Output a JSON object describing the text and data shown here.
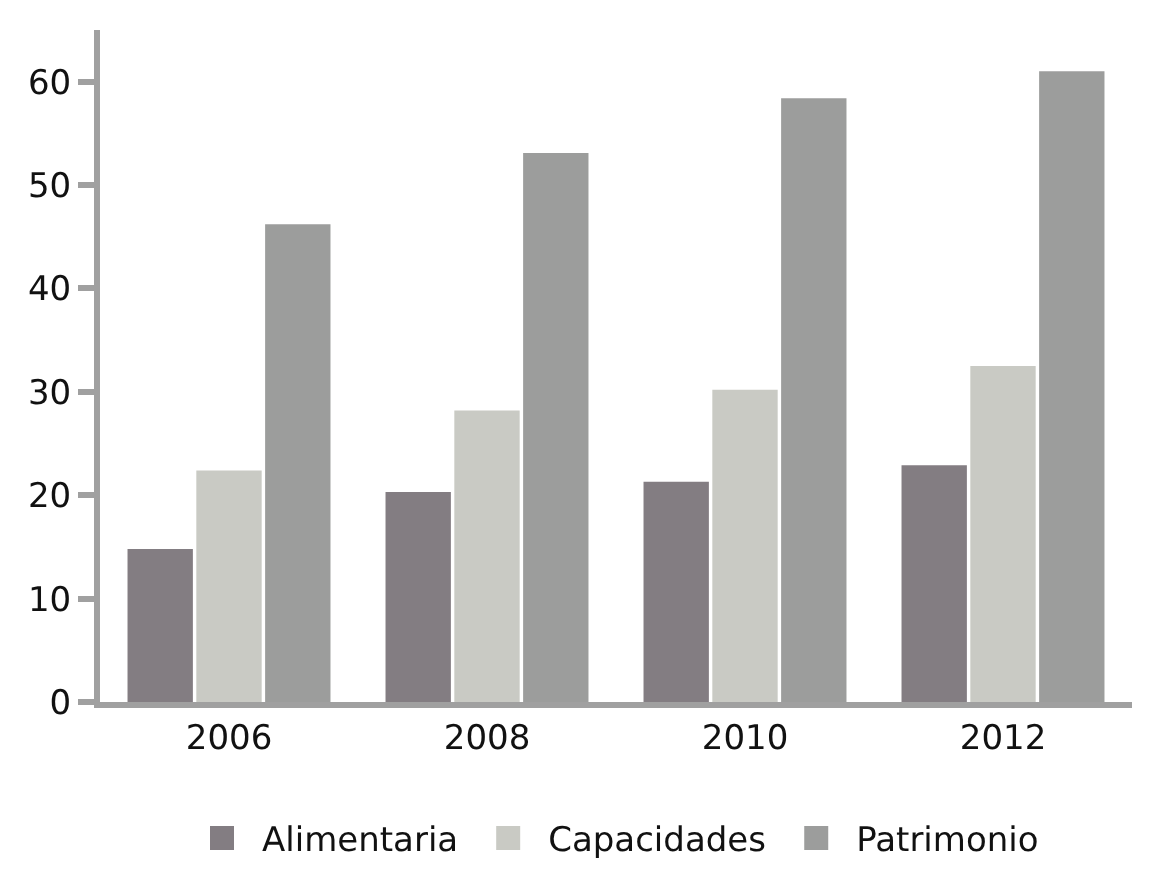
{
  "chart_data": {
    "type": "bar",
    "categories": [
      "2006",
      "2008",
      "2010",
      "2012"
    ],
    "series": [
      {
        "name": "Alimentaria",
        "color": "#837d82",
        "values": [
          14.8,
          20.3,
          21.3,
          22.9
        ]
      },
      {
        "name": "Capacidades",
        "color": "#c9cac4",
        "values": [
          22.4,
          28.2,
          30.2,
          32.5
        ]
      },
      {
        "name": "Patrimonio",
        "color": "#9c9d9c",
        "values": [
          46.2,
          53.1,
          58.4,
          61.0
        ]
      }
    ],
    "ylim": [
      0,
      65
    ],
    "yticks": [
      0,
      10,
      20,
      30,
      40,
      50,
      60
    ],
    "grid": false,
    "legend": "bottom"
  }
}
